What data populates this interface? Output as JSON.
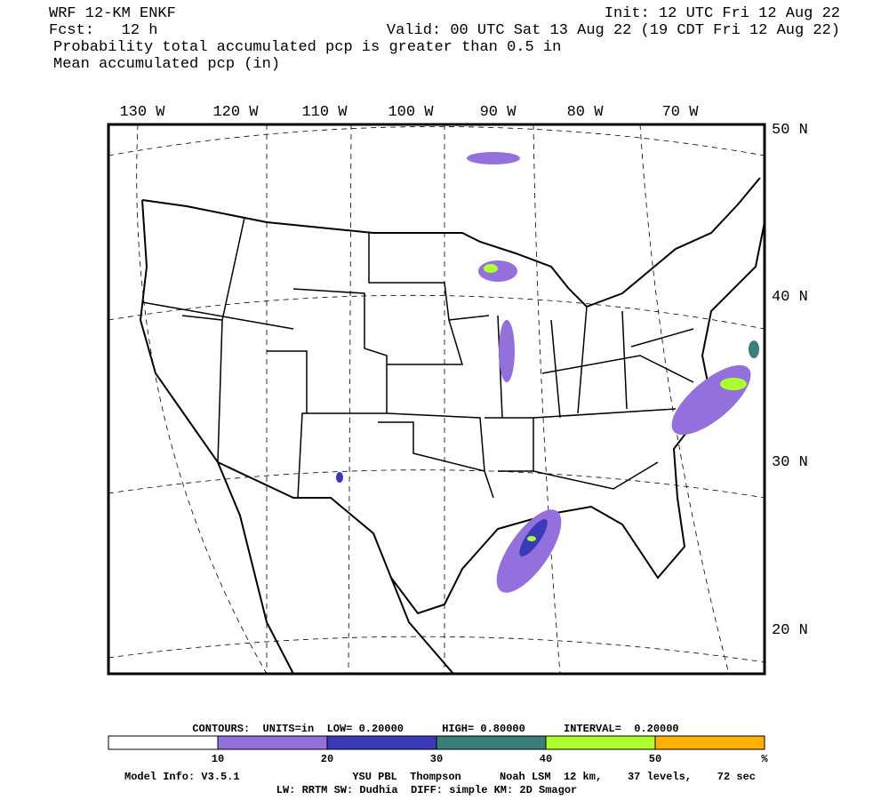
{
  "header": {
    "model": "WRF 12-KM ENKF",
    "init": "Init: 12 UTC Fri 12 Aug 22",
    "fcst": "Fcst:   12 h",
    "valid": "Valid: 00 UTC Sat 13 Aug 22 (19 CDT Fri 12 Aug 22)",
    "line1": "Probability total accumulated pcp is greater than 0.5 in",
    "line2": "Mean accumulated pcp (in)"
  },
  "map": {
    "lon_labels": [
      "130 W",
      "120 W",
      "110 W",
      "100 W",
      "90 W",
      "80 W",
      "70 W"
    ],
    "lat_labels": [
      "50 N",
      "40 N",
      "30 N",
      "20 N"
    ]
  },
  "legend": {
    "contours": "CONTOURS:  UNITS=in  LOW= 0.20000      HIGH= 0.80000      INTERVAL=  0.20000",
    "colors": [
      "#ffffff",
      "#9370db",
      "#3a3ab8",
      "#3a7f7a",
      "#adff2f",
      "#ffb000"
    ],
    "labels": [
      10,
      20,
      30,
      40,
      50
    ],
    "unit": "%"
  },
  "footer": {
    "model_info": "Model Info: V3.5.1",
    "physics": "YSU PBL  Thompson      Noah LSM  12 km,    37 levels,    72 sec",
    "radiation": "LW: RRTM SW: Dudhia  DIFF: simple KM: 2D Smagor"
  }
}
